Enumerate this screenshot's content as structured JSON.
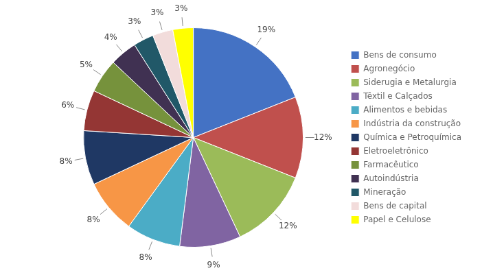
{
  "chart_data": {
    "type": "pie",
    "categories": [
      "Bens de consumo",
      "Agronegócio",
      "Siderugia e Metalurgia",
      "Têxtil e Calçados",
      "Alimentos e bebidas",
      "Indústria da construção",
      "Química e Petroquímica",
      "Eletroeletrônico",
      "Farmacêutico",
      "Autoindústria",
      "Mineração",
      "Bens de capital",
      "Papel e Celulose"
    ],
    "values": [
      19,
      12,
      12,
      9,
      8,
      8,
      8,
      6,
      5,
      4,
      3,
      3,
      3
    ],
    "value_labels": [
      "19%",
      "12%",
      "12%",
      "9%",
      "8%",
      "8%",
      "8%",
      "6%",
      "5%",
      "4%",
      "3%",
      "3%",
      "3%"
    ],
    "colors": [
      "#4472C4",
      "#C0504D",
      "#9BBB59",
      "#8064A2",
      "#4BACC6",
      "#F79646",
      "#1F3864",
      "#943634",
      "#76923C",
      "#403152",
      "#215868",
      "#F2DCDB",
      "#FFFF00"
    ],
    "data_labels": true,
    "legend": "right"
  }
}
